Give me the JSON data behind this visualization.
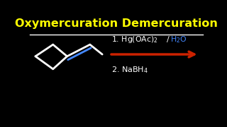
{
  "title": "Oxymercuration Demercuration",
  "title_color": "#FFFF00",
  "bg_color": "#000000",
  "separator_color": "#FFFFFF",
  "line_color": "#FFFFFF",
  "blue_color": "#4488FF",
  "red_color": "#CC2200",
  "step2_sub": "4"
}
